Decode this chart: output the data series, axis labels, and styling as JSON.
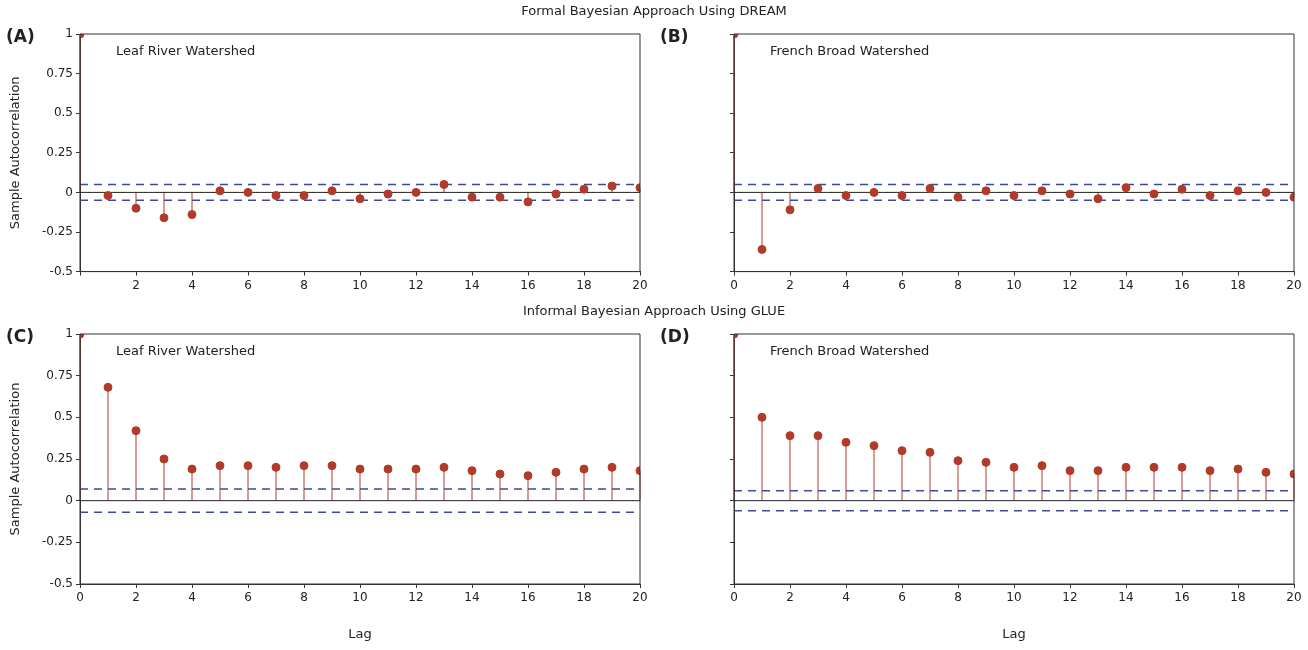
{
  "chart_data": [
    {
      "type": "lollipop",
      "title": "Formal Bayesian Approach Using DREAM",
      "ylabel": "Sample Autocorrelation",
      "annotations": [
        "(A)",
        "Leaf River Watershed"
      ],
      "x": [
        0,
        1,
        2,
        3,
        4,
        5,
        6,
        7,
        8,
        9,
        10,
        11,
        12,
        13,
        14,
        15,
        16,
        17,
        18,
        19,
        20
      ],
      "values": [
        1,
        -0.02,
        -0.1,
        -0.16,
        -0.14,
        0.01,
        0,
        -0.02,
        -0.02,
        0.01,
        -0.04,
        -0.01,
        0,
        0.05,
        -0.03,
        -0.03,
        -0.06,
        -0.01,
        0.02,
        0.04,
        0.03
      ],
      "color": "#b23a2a",
      "marker": "circle",
      "xlim": [
        0,
        20
      ],
      "ylim": [
        -0.5,
        1
      ],
      "xticks": [
        {
          "value": 0,
          "label": null
        },
        2,
        4,
        6,
        8,
        10,
        12,
        14,
        16,
        18,
        20
      ],
      "yticks": [
        -0.5,
        -0.25,
        0,
        0.25,
        0.5,
        0.75,
        1
      ],
      "ref_lines": [
        {
          "axis": "y",
          "value": 0.05,
          "color": "#3d4a9c",
          "line_style": "dashed"
        },
        {
          "axis": "y",
          "value": -0.05,
          "color": "#3d4a9c",
          "line_style": "dashed"
        }
      ]
    },
    {
      "type": "lollipop",
      "annotations": [
        "(B)",
        "French Broad Watershed"
      ],
      "x": [
        0,
        1,
        2,
        3,
        4,
        5,
        6,
        7,
        8,
        9,
        10,
        11,
        12,
        13,
        14,
        15,
        16,
        17,
        18,
        19,
        20
      ],
      "values": [
        1,
        -0.36,
        -0.11,
        0.025,
        -0.02,
        0,
        -0.02,
        0.025,
        -0.03,
        0.01,
        -0.02,
        0.01,
        -0.01,
        -0.04,
        0.03,
        -0.01,
        0.02,
        -0.02,
        0.01,
        0,
        -0.03
      ],
      "color": "#b23a2a",
      "marker": "circle",
      "xlim": [
        0,
        20
      ],
      "ylim": [
        -0.5,
        1
      ],
      "xticks": [
        0,
        2,
        4,
        6,
        8,
        10,
        12,
        14,
        16,
        18,
        20
      ],
      "yticks": [
        -0.5,
        -0.25,
        0,
        0.25,
        0.5,
        0.75,
        1
      ],
      "tick_labels": "x",
      "ref_lines": [
        {
          "axis": "y",
          "value": 0.05,
          "color": "#3d4a9c",
          "line_style": "dashed"
        },
        {
          "axis": "y",
          "value": -0.05,
          "color": "#3d4a9c",
          "line_style": "dashed"
        }
      ]
    },
    {
      "type": "lollipop",
      "title": "Informal Bayesian Approach Using GLUE",
      "ylabel": "Sample Autocorrelation",
      "xlabel": "Lag",
      "annotations": [
        "(C)",
        "Leaf River Watershed"
      ],
      "x": [
        0,
        1,
        2,
        3,
        4,
        5,
        6,
        7,
        8,
        9,
        10,
        11,
        12,
        13,
        14,
        15,
        16,
        17,
        18,
        19,
        20
      ],
      "values": [
        1,
        0.68,
        0.42,
        0.25,
        0.19,
        0.21,
        0.21,
        0.2,
        0.21,
        0.21,
        0.19,
        0.19,
        0.19,
        0.2,
        0.18,
        0.16,
        0.15,
        0.17,
        0.19,
        0.2,
        0.18
      ],
      "color": "#b23a2a",
      "marker": "circle",
      "xlim": [
        0,
        20
      ],
      "ylim": [
        -0.5,
        1
      ],
      "xticks": [
        0,
        2,
        4,
        6,
        8,
        10,
        12,
        14,
        16,
        18,
        20
      ],
      "yticks": [
        -0.5,
        -0.25,
        0,
        0.25,
        0.5,
        0.75,
        1
      ],
      "ref_lines": [
        {
          "axis": "y",
          "value": 0.07,
          "color": "#3d4a9c",
          "line_style": "dashed"
        },
        {
          "axis": "y",
          "value": -0.07,
          "color": "#3d4a9c",
          "line_style": "dashed"
        }
      ]
    },
    {
      "type": "lollipop",
      "xlabel": "Lag",
      "annotations": [
        "(D)",
        "French Broad Watershed"
      ],
      "x": [
        0,
        1,
        2,
        3,
        4,
        5,
        6,
        7,
        8,
        9,
        10,
        11,
        12,
        13,
        14,
        15,
        16,
        17,
        18,
        19,
        20
      ],
      "values": [
        1,
        0.5,
        0.39,
        0.39,
        0.35,
        0.33,
        0.3,
        0.29,
        0.24,
        0.23,
        0.2,
        0.21,
        0.18,
        0.18,
        0.2,
        0.2,
        0.2,
        0.18,
        0.19,
        0.17,
        0.16
      ],
      "color": "#b23a2a",
      "marker": "circle",
      "xlim": [
        0,
        20
      ],
      "ylim": [
        -0.5,
        1
      ],
      "xticks": [
        0,
        2,
        4,
        6,
        8,
        10,
        12,
        14,
        16,
        18,
        20
      ],
      "yticks": [
        -0.5,
        -0.25,
        0,
        0.25,
        0.5,
        0.75,
        1
      ],
      "tick_labels": "x",
      "ref_lines": [
        {
          "axis": "y",
          "value": 0.06,
          "color": "#3d4a9c",
          "line_style": "dashed"
        },
        {
          "axis": "y",
          "value": -0.06,
          "color": "#3d4a9c",
          "line_style": "dashed"
        }
      ]
    }
  ]
}
